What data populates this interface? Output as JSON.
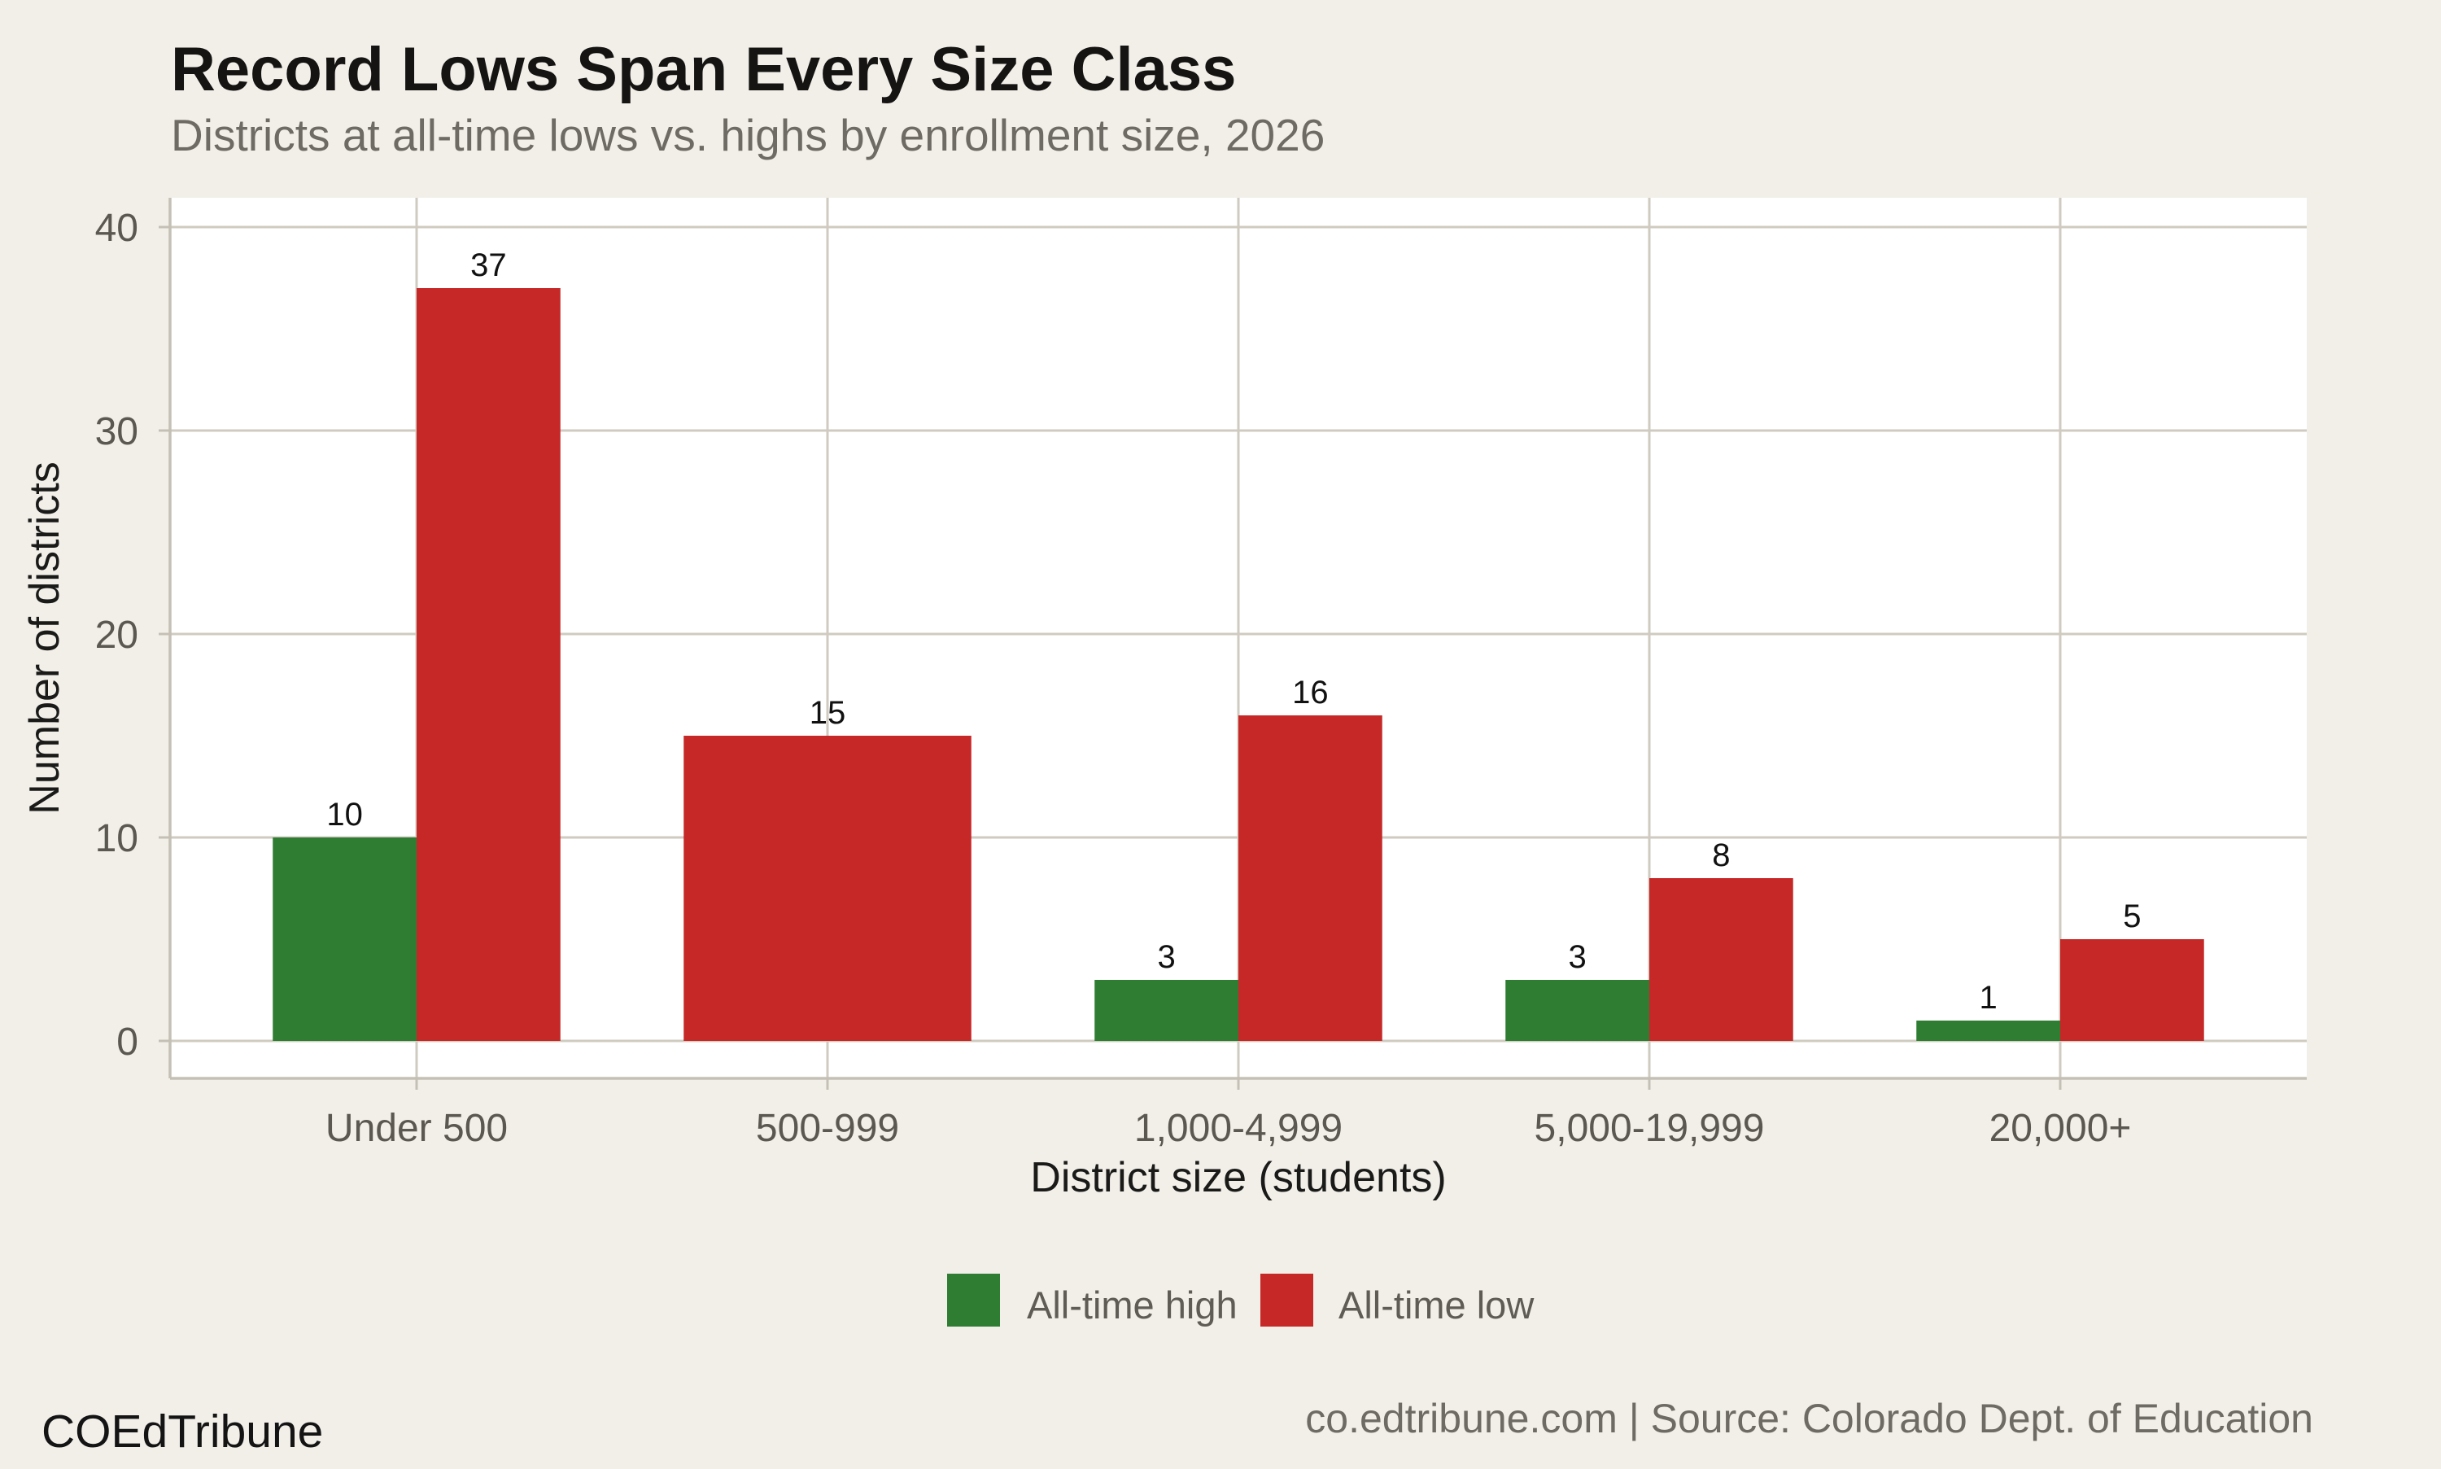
{
  "chart_data": {
    "type": "bar",
    "title": "Record Lows Span Every Size Class",
    "subtitle": "Districts at all-time lows vs. highs by enrollment size, 2026",
    "categories": [
      "Under 500",
      "500-999",
      "1,000-4,999",
      "5,000-19,999",
      "20,000+"
    ],
    "series": [
      {
        "name": "All-time high",
        "color": "#2e7d32",
        "values": [
          10,
          null,
          3,
          3,
          1
        ]
      },
      {
        "name": "All-time low",
        "color": "#c62828",
        "values": [
          37,
          15,
          16,
          8,
          5
        ]
      }
    ],
    "xlabel": "District size (students)",
    "ylabel": "Number of districts",
    "yticks": [
      0,
      10,
      20,
      30,
      40
    ],
    "ylim": [
      -1.9,
      41.5
    ],
    "grid": true,
    "legend_position": "bottom",
    "bar_value_labels": true
  },
  "footer": {
    "brand": "COEdTribune",
    "source": "co.edtribune.com | Source: Colorado Dept. of Education"
  },
  "colors": {
    "background": "#f2efe9",
    "panel": "#ffffff",
    "grid": "#cfcbc0",
    "axis": "#c4c0b5",
    "tick_text": "#5b5751",
    "axis_title_text": "#1a1a19",
    "title_text": "#151413",
    "subtitle_text": "#6e6a64",
    "value_label_text": "#111111",
    "legend_text": "#5f5b55",
    "brand_text": "#141414",
    "source_text": "#6e6a64"
  }
}
